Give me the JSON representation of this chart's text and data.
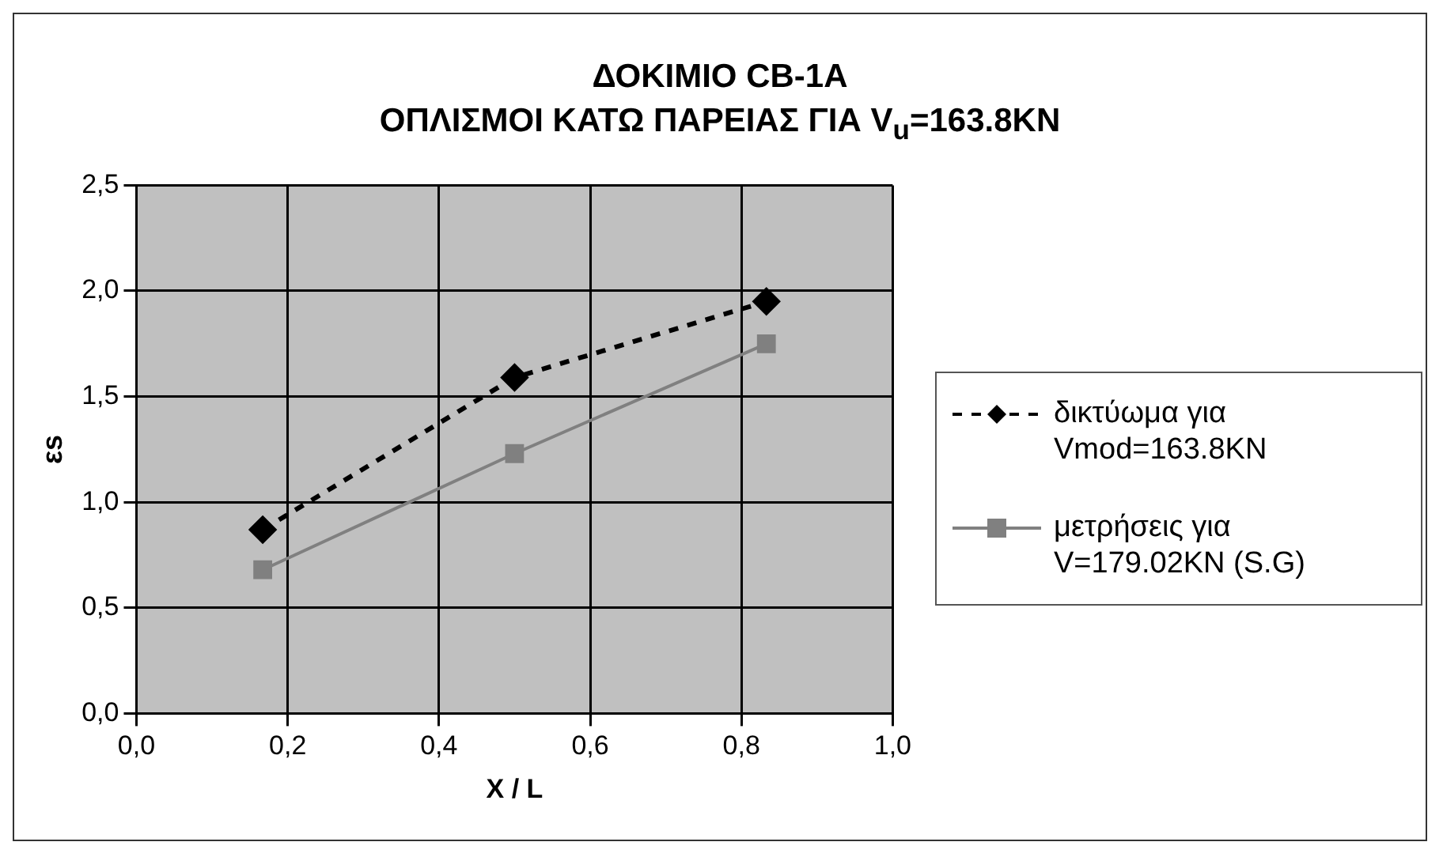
{
  "chart_data": {
    "type": "line",
    "title": "ΔΟΚΙΜΙΟ CB-1A",
    "subtitle": "ΟΠΛΙΣΜΟΙ ΚΑΤΩ ΠΑΡΕΙΑΣ ΓΙΑ V$_{u}$=163.8KN",
    "xlabel": "X / L",
    "ylabel": "εs",
    "x": [
      0.167,
      0.5,
      0.833
    ],
    "series": [
      {
        "name": "δικτύωμα για Vmod=163.8KN",
        "color": "#000000",
        "values": [
          0.87,
          1.59,
          1.95
        ],
        "marker": "diamond",
        "line_style": "dashed"
      },
      {
        "name": "μετρήσεις για V=179.02KN (S.G)",
        "color": "#808080",
        "values": [
          0.68,
          1.23,
          1.75
        ],
        "marker": "square",
        "line_style": "solid"
      }
    ],
    "xlim": [
      0,
      1
    ],
    "xticks": [
      {
        "value": 0,
        "label": "0,0"
      },
      {
        "value": 0.2,
        "label": "0,2"
      },
      {
        "value": 0.4,
        "label": "0,4"
      },
      {
        "value": 0.6,
        "label": "0,6"
      },
      {
        "value": 0.8,
        "label": "0,8"
      },
      {
        "value": 1,
        "label": "1,0"
      }
    ],
    "ylim": [
      0,
      2.5
    ],
    "yticks": [
      {
        "value": 0,
        "label": "0,0"
      },
      {
        "value": 0.5,
        "label": "0,5"
      },
      {
        "value": 1,
        "label": "1,0"
      },
      {
        "value": 1.5,
        "label": "1,5"
      },
      {
        "value": 2,
        "label": "2,0"
      },
      {
        "value": 2.5,
        "label": "2,5"
      }
    ],
    "grid": true,
    "legend": "right"
  }
}
